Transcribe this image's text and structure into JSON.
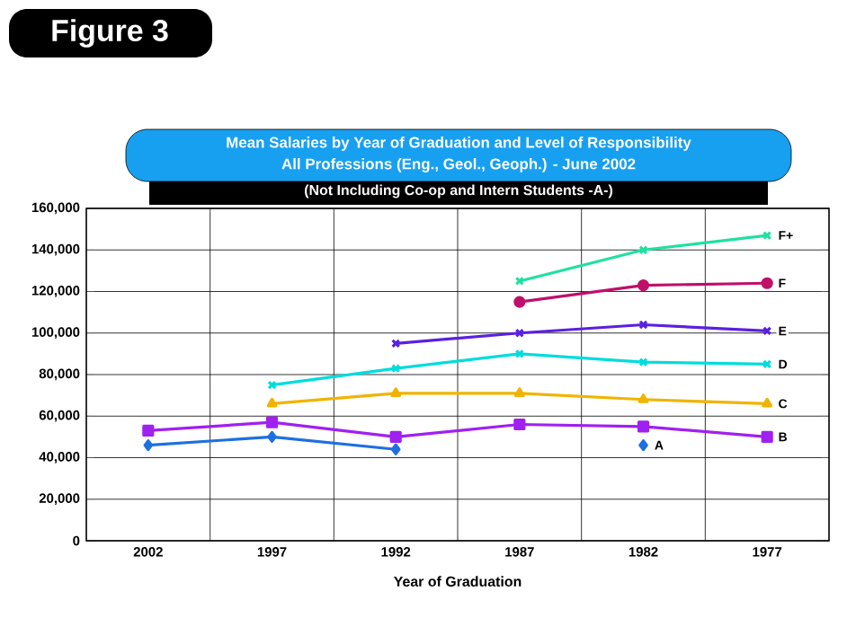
{
  "chart_data": {
    "type": "line",
    "title": "Mean Salaries by Year of Graduation and Level of Responsibility",
    "subtitle": "All Professions (Eng., Geol., Geoph.) - June 2002",
    "annotations": [
      "Figure 3",
      "(Not Including Co-op and Intern Students -A-)"
    ],
    "xlabel": "Year of Graduation",
    "categories": [
      "2002",
      "1997",
      "1992",
      "1987",
      "1982",
      "1977"
    ],
    "series": [
      {
        "name": "A",
        "color": "#1e6fe0",
        "marker": "diamond",
        "values": [
          46000,
          50000,
          44000,
          null,
          46000,
          null
        ]
      },
      {
        "name": "B",
        "color": "#a020f0",
        "marker": "square",
        "values": [
          53000,
          57000,
          50000,
          56000,
          55000,
          50000
        ]
      },
      {
        "name": "C",
        "color": "#f0b400",
        "marker": "triangle",
        "values": [
          null,
          66000,
          71000,
          71000,
          68000,
          66000
        ]
      },
      {
        "name": "D",
        "color": "#00dcdc",
        "marker": "cross",
        "values": [
          null,
          75000,
          83000,
          90000,
          86000,
          85000
        ]
      },
      {
        "name": "E",
        "color": "#5a20e0",
        "marker": "cross",
        "values": [
          null,
          null,
          95000,
          100000,
          104000,
          101000
        ]
      },
      {
        "name": "F",
        "color": "#c0106a",
        "marker": "circle",
        "values": [
          null,
          null,
          null,
          115000,
          123000,
          124000
        ]
      },
      {
        "name": "F+",
        "color": "#20e0a0",
        "marker": "cross",
        "values": [
          null,
          null,
          null,
          125000,
          140000,
          147000
        ]
      }
    ],
    "ylim": [
      0,
      160000
    ],
    "yticks": [
      {
        "value": 0,
        "label": "0"
      },
      {
        "value": 20000,
        "label": "20,000"
      },
      {
        "value": 40000,
        "label": "40,000"
      },
      {
        "value": 60000,
        "label": "60,000"
      },
      {
        "value": 80000,
        "label": "80,000"
      },
      {
        "value": 100000,
        "label": "100,000"
      },
      {
        "value": 120000,
        "label": "120,000"
      },
      {
        "value": 140000,
        "label": "140,000"
      },
      {
        "value": 160000,
        "label": "160,000"
      }
    ],
    "grid": true,
    "line_style": "solid"
  }
}
